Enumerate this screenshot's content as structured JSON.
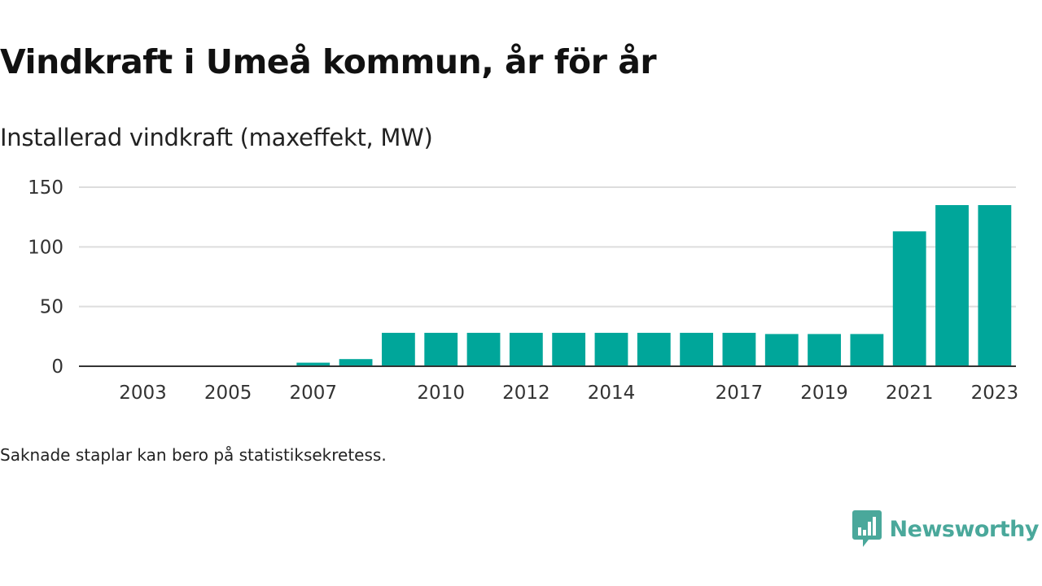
{
  "title": "Vindkraft i Umeå kommun, år för år",
  "subtitle": "Installerad vindkraft (maxeffekt, MW)",
  "footnote": "Saknade staplar kan bero på statistiksekretess.",
  "brand": {
    "name": "Newsworthy",
    "icon": "chart-bubble-icon",
    "color": "#4aa89b"
  },
  "colors": {
    "bar": "#00a69a",
    "grid": "#dddddd",
    "axis": "#333333"
  },
  "chart_data": {
    "type": "bar",
    "categories": [
      "2002",
      "2003",
      "2004",
      "2005",
      "2006",
      "2007",
      "2008",
      "2009",
      "2010",
      "2011",
      "2012",
      "2013",
      "2014",
      "2015",
      "2016",
      "2017",
      "2018",
      "2019",
      "2020",
      "2021",
      "2022",
      "2023"
    ],
    "values": [
      0,
      0,
      0,
      0,
      0,
      3,
      6,
      28,
      28,
      28,
      28,
      28,
      28,
      28,
      28,
      28,
      27,
      27,
      27,
      113,
      135,
      135
    ],
    "x_tick_labels": [
      "2003",
      "2005",
      "2007",
      "2010",
      "2012",
      "2014",
      "2017",
      "2019",
      "2021",
      "2023"
    ],
    "y_ticks": [
      0,
      50,
      100,
      150
    ],
    "ylim": [
      0,
      150
    ],
    "grid": true,
    "xlabel": "",
    "ylabel": ""
  }
}
